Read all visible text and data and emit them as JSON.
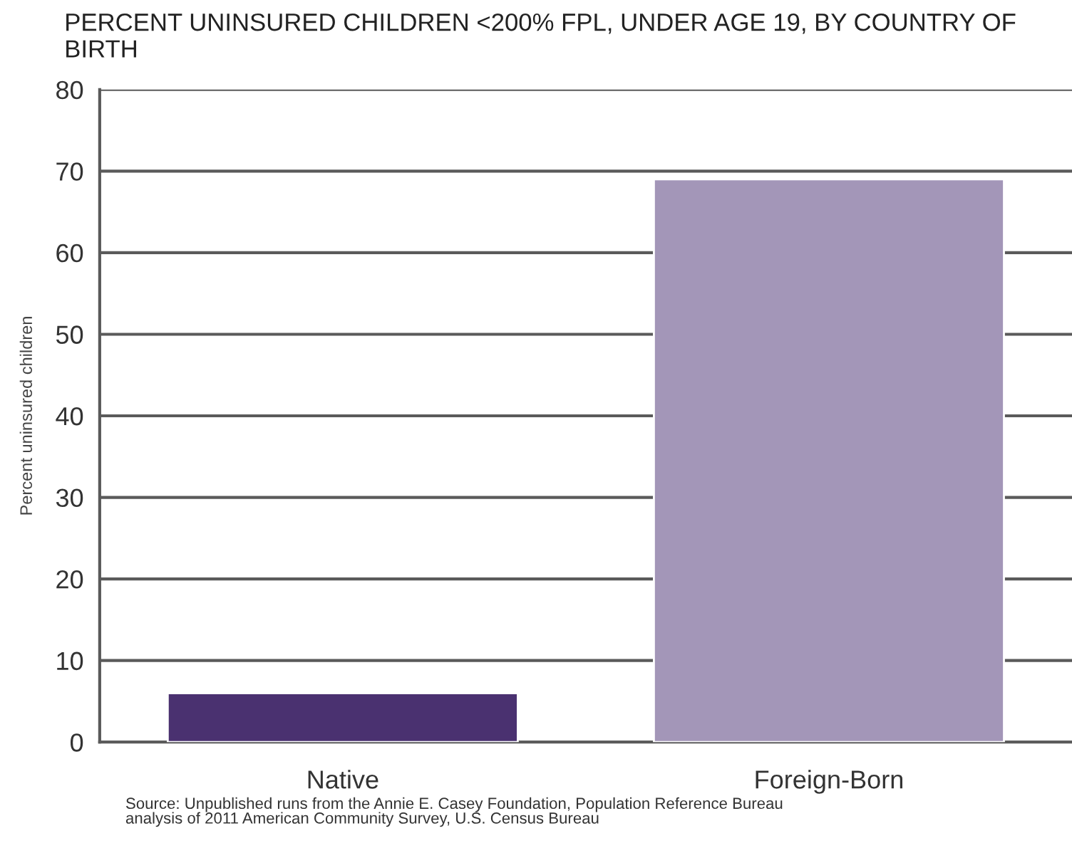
{
  "chart_data": {
    "type": "bar",
    "title": "PERCENT UNINSURED CHILDREN <200% FPL, UNDER AGE 19, BY COUNTRY OF BIRTH",
    "ylabel": "Percent uninsured children",
    "categories": [
      "Native",
      "Foreign-Born"
    ],
    "values": [
      6,
      69
    ],
    "colors": [
      "#4a3170",
      "#a396b8"
    ],
    "ylim": [
      0,
      80
    ],
    "yticks": [
      0,
      10,
      20,
      30,
      40,
      50,
      60,
      70,
      80
    ],
    "grid": "y",
    "legend": false,
    "annotations": [
      "Source: Unpublished runs from the Annie E. Casey Foundation, Population Reference Bureau\nanalysis of 2011 American Community Survey, U.S. Census Bureau"
    ]
  }
}
